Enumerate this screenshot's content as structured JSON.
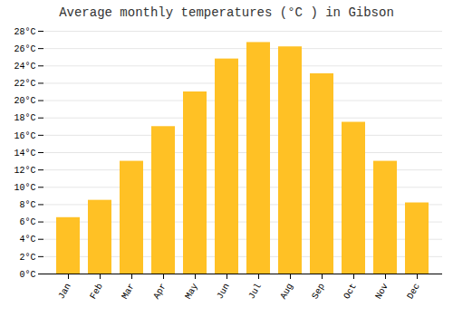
{
  "chart_data": {
    "type": "bar",
    "title": "Average monthly temperatures (°C ) in Gibson",
    "categories": [
      "Jan",
      "Feb",
      "Mar",
      "Apr",
      "May",
      "Jun",
      "Jul",
      "Aug",
      "Sep",
      "Oct",
      "Nov",
      "Dec"
    ],
    "values": [
      6.5,
      8.5,
      13.0,
      17.0,
      21.0,
      24.8,
      26.7,
      26.2,
      23.1,
      17.5,
      13.0,
      8.2
    ],
    "color": "#FFC125",
    "ylim": [
      0,
      28
    ],
    "yticks": [
      {
        "value": 0,
        "label": "0°C"
      },
      {
        "value": 2,
        "label": "2°C"
      },
      {
        "value": 4,
        "label": "4°C"
      },
      {
        "value": 6,
        "label": "6°C"
      },
      {
        "value": 8,
        "label": "8°C"
      },
      {
        "value": 10,
        "label": "10°C"
      },
      {
        "value": 12,
        "label": "12°C"
      },
      {
        "value": 14,
        "label": "14°C"
      },
      {
        "value": 16,
        "label": "16°C"
      },
      {
        "value": 18,
        "label": "18°C"
      },
      {
        "value": 20,
        "label": "20°C"
      },
      {
        "value": 22,
        "label": "22°C"
      },
      {
        "value": 24,
        "label": "24°C"
      },
      {
        "value": 26,
        "label": "26°C"
      },
      {
        "value": 28,
        "label": "28°C"
      }
    ],
    "grid": true
  }
}
